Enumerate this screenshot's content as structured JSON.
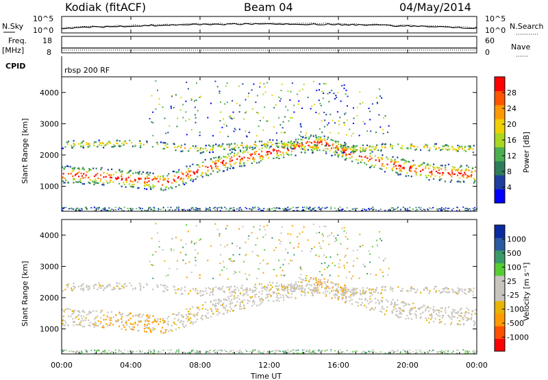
{
  "header": {
    "station": "Kodiak (fitACF)",
    "beam": "Beam 04",
    "date": "04/May/2014"
  },
  "top_panels": {
    "nsky_label": "N.Sky",
    "nsky_ticks": [
      "10^5",
      "10^0"
    ],
    "nsearch_label": "N.Search",
    "nsearch_ticks": [
      "10^5",
      "10^0"
    ],
    "freq_label": "Freq.",
    "freq_unit": "[MHz]",
    "freq_ticks": [
      "18",
      "8"
    ],
    "nave_label": "Nave",
    "nave_ticks": [
      "60",
      "0"
    ],
    "cpid_label": "CPID",
    "cpid_value": "rbsp 200 RF"
  },
  "colors": {
    "power_scale": [
      "#0000ff",
      "#1e3fa0",
      "#2e7d5a",
      "#4caf50",
      "#a8d820",
      "#f0d000",
      "#ff9900",
      "#ff5500",
      "#ff0000"
    ],
    "velocity_scale": [
      "#ff0000",
      "#ff5000",
      "#ff9900",
      "#e8b400",
      "#c8c4be",
      "#c8c4be",
      "#55cc33",
      "#3a9a6a",
      "#2a5aa0",
      "#0a2aa0"
    ]
  },
  "chart_data": [
    {
      "type": "heatmap",
      "panel": "power",
      "ylabel": "Slant Range [km]",
      "yticks": [
        "1000",
        "2000",
        "3000",
        "4000"
      ],
      "ylim": [
        200,
        4500
      ],
      "xlim": [
        "00:00",
        "24:00"
      ],
      "colorbar_label": "Power [dB]",
      "colorbar_ticks": [
        "4",
        "8",
        "12",
        "16",
        "20",
        "24",
        "28"
      ],
      "colorbar_range": [
        0,
        32
      ],
      "series": [
        {
          "name": "",
          "x_hours": [
            0,
            2,
            4,
            6,
            8,
            10,
            12,
            14,
            15,
            16,
            18,
            20,
            22,
            24
          ],
          "range_km": [
            1400,
            1350,
            1250,
            1150,
            1550,
            1900,
            2100,
            2350,
            2400,
            2200,
            1850,
            1600,
            1450,
            1400
          ]
        },
        {
          "name": "",
          "x_hours": [
            0,
            4,
            8,
            12,
            16,
            20,
            24
          ],
          "range_km": [
            2350,
            2400,
            2200,
            2400,
            2200,
            2300,
            2200
          ]
        }
      ]
    },
    {
      "type": "heatmap",
      "panel": "velocity",
      "ylabel": "Slant Range [km]",
      "xlabel": "Time UT",
      "yticks": [
        "1000",
        "2000",
        "3000",
        "4000"
      ],
      "xticks": [
        "00:00",
        "04:00",
        "08:00",
        "12:00",
        "16:00",
        "20:00",
        "00:00"
      ],
      "ylim": [
        200,
        4500
      ],
      "colorbar_label": "Velocity [m s⁻¹]",
      "colorbar_ticks": [
        "1000",
        "500",
        "100",
        "25",
        "-25",
        "-100",
        "-500",
        "-1000"
      ]
    }
  ]
}
